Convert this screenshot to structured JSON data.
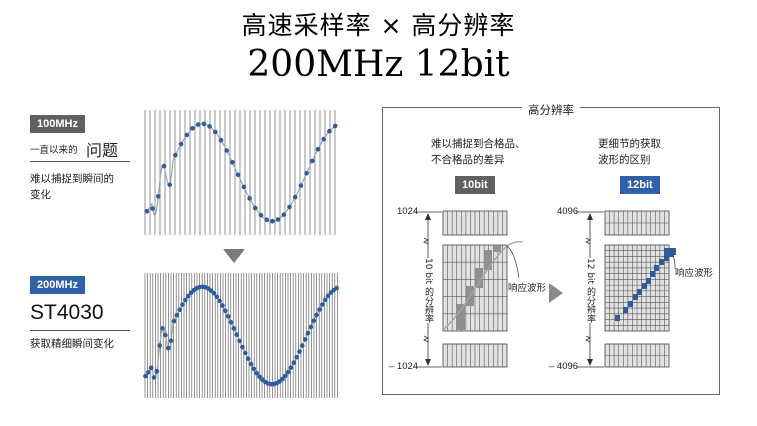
{
  "header": {
    "title": "高速采样率 × 高分辨率",
    "spec": "200MHz 12bit"
  },
  "top_example": {
    "rate_tag": "100MHz",
    "caption_prefix": "一直以来的",
    "caption_emph": "问题",
    "description_line1": "难以捕捉到瞬间的",
    "description_line2": "变化"
  },
  "bottom_example": {
    "rate_tag": "200MHz",
    "model": "ST4030",
    "description": "获取精细瞬间变化"
  },
  "resolution_panel": {
    "title": "高分辨率",
    "left": {
      "description_line1": "难以捕捉到合格品、",
      "description_line2": "不合格品的差异",
      "bit_tag": "10bit",
      "axis_top": "1024",
      "axis_bottom": "– 1024",
      "axis_label": "10 bit 的分辨率",
      "waveform_label": "响应波形"
    },
    "right": {
      "description_line1": "更细节的获取",
      "description_line2": "波形的区别",
      "bit_tag": "12bit",
      "axis_top": "4096",
      "axis_bottom": "– 4096",
      "axis_label": "12 bit 的分辨率",
      "waveform_label": "响应波形"
    }
  },
  "colors": {
    "accent_blue": "#3060a8",
    "tag_gray": "#606060",
    "sample_dot": "#2d5d9e"
  }
}
